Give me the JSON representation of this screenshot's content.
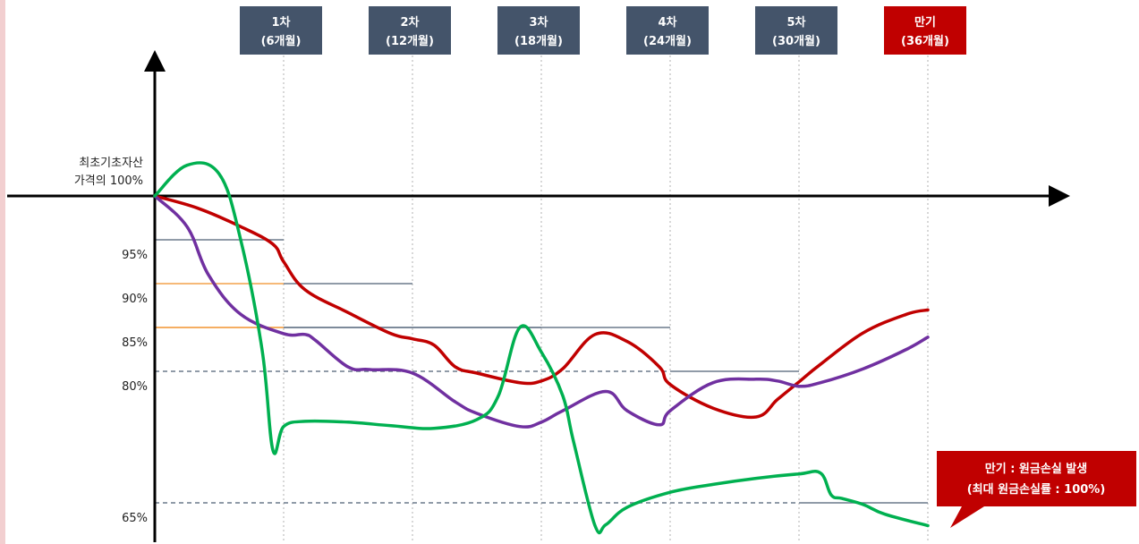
{
  "chart_data": {
    "type": "line",
    "title": "",
    "observation_dates": [
      {
        "label": "1차",
        "sub": "(6개월)",
        "month": 6,
        "barrier": 95,
        "color": "#44546a"
      },
      {
        "label": "2차",
        "sub": "(12개월)",
        "month": 12,
        "barrier": 90,
        "color": "#44546a"
      },
      {
        "label": "3차",
        "sub": "(18개월)",
        "month": 18,
        "barrier": 85,
        "color": "#44546a"
      },
      {
        "label": "4차",
        "sub": "(24개월)",
        "month": 24,
        "barrier": 85,
        "color": "#44546a"
      },
      {
        "label": "5차",
        "sub": "(30개월)",
        "month": 30,
        "barrier": 80,
        "color": "#44546a"
      },
      {
        "label": "만기",
        "sub": "(36개월)",
        "month": 36,
        "barrier": 65,
        "color": "#c00000"
      }
    ],
    "y_axis": {
      "base_label_line1": "최초기초자산",
      "base_label_line2": "가격의 100%",
      "ticks": [
        {
          "value": 95,
          "label": "95%"
        },
        {
          "value": 90,
          "label": "90%"
        },
        {
          "value": 85,
          "label": "85%"
        },
        {
          "value": 80,
          "label": "80%"
        },
        {
          "value": 65,
          "label": "65%"
        }
      ],
      "ylim": [
        62,
        130
      ]
    },
    "xlim": [
      0,
      42
    ],
    "knock_in_levels": [
      80,
      65
    ],
    "series": [
      {
        "color": "#c00000",
        "x": [
          0,
          2,
          4,
          5.5,
          6,
          7,
          9,
          11,
          12,
          13,
          14,
          15,
          17,
          18,
          19,
          20.5,
          22,
          23.5,
          24,
          26,
          28,
          29,
          30,
          31,
          33,
          35,
          36
        ],
        "y": [
          100,
          98.6,
          96.5,
          94.5,
          92.5,
          89.3,
          86.7,
          84.3,
          83.7,
          83,
          80.5,
          79.8,
          78.7,
          78.9,
          80.3,
          84.2,
          83.4,
          80.5,
          78.5,
          75.8,
          74.8,
          76.8,
          78.8,
          80.8,
          84.4,
          86.5,
          87
        ]
      },
      {
        "color": "#7030a0",
        "x": [
          0,
          1.5,
          2.5,
          4,
          6,
          7,
          7.5,
          9,
          10,
          12,
          14,
          15,
          17,
          18,
          19,
          21,
          22,
          23.5,
          24,
          26,
          28,
          29,
          30,
          31,
          33,
          35,
          36
        ],
        "y": [
          100,
          96.5,
          91,
          86.5,
          84.3,
          84.2,
          83.5,
          80.5,
          80.2,
          79.8,
          76.5,
          75.2,
          73.7,
          74.2,
          75.5,
          77.7,
          75.5,
          73.9,
          75.5,
          78.7,
          79.1,
          78.9,
          78.3,
          78.7,
          80.3,
          82.5,
          83.9
        ]
      },
      {
        "color": "#00b050",
        "x": [
          0,
          1.5,
          3,
          4,
          5,
          5.5,
          6,
          7,
          9,
          11,
          13,
          15,
          16,
          17,
          18,
          19,
          19.5,
          20.5,
          21,
          22,
          24,
          26,
          28,
          30,
          31,
          31.5,
          32,
          33,
          34,
          36
        ],
        "y": [
          100,
          103.5,
          102.5,
          95,
          82.4,
          71,
          73.7,
          74.3,
          74.2,
          73.8,
          73.5,
          74.5,
          77.2,
          85,
          82.2,
          77.2,
          72,
          62.4,
          62.5,
          64.5,
          66.2,
          67.1,
          67.8,
          68.3,
          68.4,
          65.9,
          65.5,
          64.8,
          63.7,
          62.4
        ]
      }
    ],
    "callout": {
      "line1": "만기 : 원금손실 발생",
      "line2": "(최대 원금손실률 : 100%)",
      "color": "#c00000"
    }
  }
}
